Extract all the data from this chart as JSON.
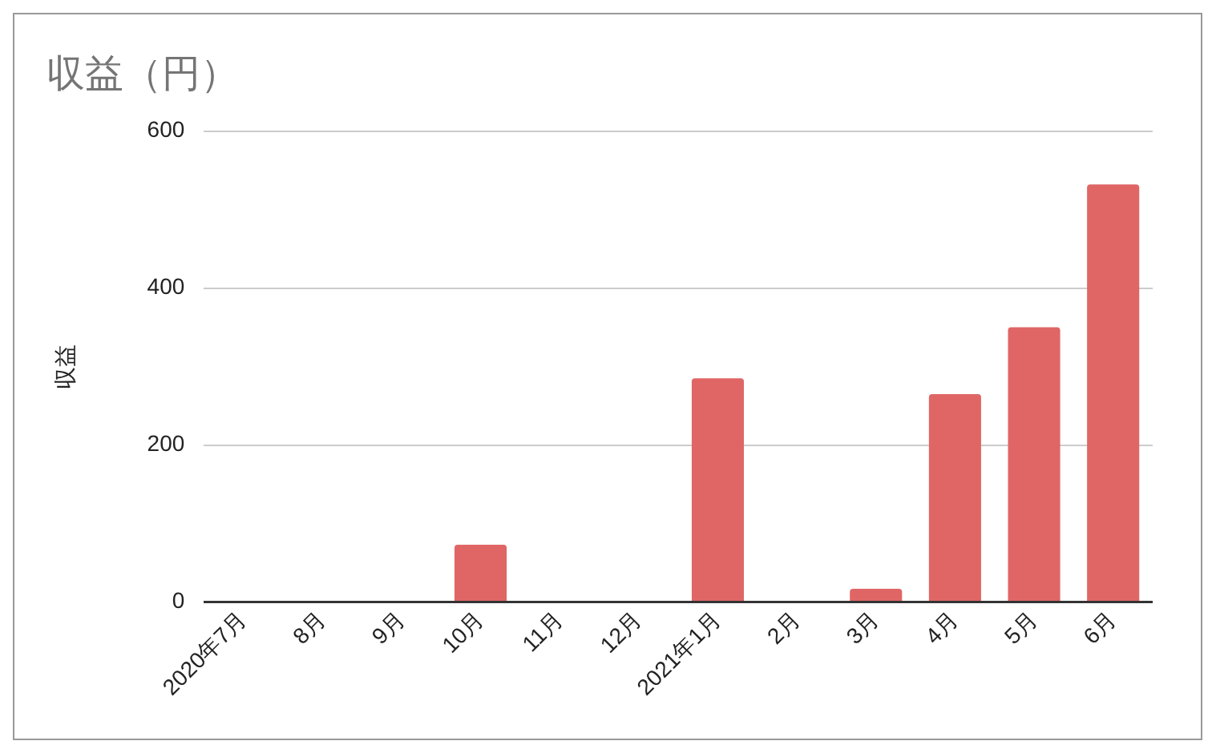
{
  "chart_data": {
    "type": "bar",
    "title": "収益（円）",
    "ylabel": "収益",
    "categories": [
      "2020年7月",
      "8月",
      "9月",
      "10月",
      "11月",
      "12月",
      "2021年1月",
      "2月",
      "3月",
      "4月",
      "5月",
      "6月"
    ],
    "values": [
      0,
      0,
      0,
      73,
      0,
      0,
      285,
      0,
      17,
      265,
      350,
      532
    ],
    "color": "#e06666",
    "ylim": [
      0,
      600
    ],
    "yticks": [
      0,
      200,
      400,
      600
    ],
    "grid": "y",
    "legend": false
  }
}
